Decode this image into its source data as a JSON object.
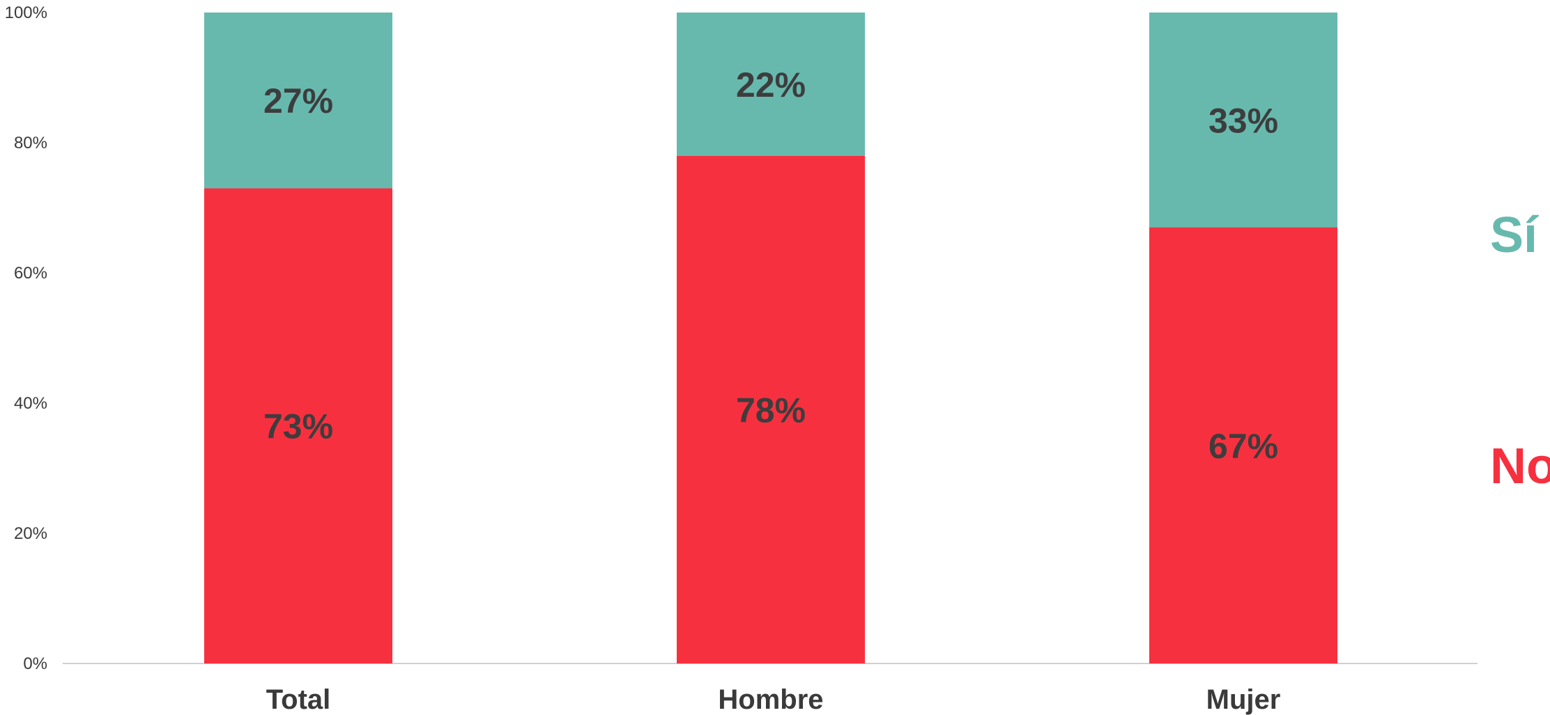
{
  "chart_data": {
    "type": "bar",
    "stacked": true,
    "categories": [
      "Total",
      "Hombre",
      "Mujer"
    ],
    "series": [
      {
        "name": "No",
        "values": [
          73,
          78,
          67
        ],
        "labels": [
          "73%",
          "78%",
          "67%"
        ],
        "color": "#f7303f"
      },
      {
        "name": "Sí",
        "values": [
          27,
          22,
          33
        ],
        "labels": [
          "27%",
          "22%",
          "33%"
        ],
        "color": "#67b9ae"
      }
    ],
    "ylim": [
      0,
      100
    ],
    "yticks": [
      0,
      20,
      40,
      60,
      80,
      100
    ],
    "ytick_labels": [
      "0%",
      "20%",
      "40%",
      "60%",
      "80%",
      "100%"
    ],
    "grid": false,
    "legend_placement": "right"
  }
}
